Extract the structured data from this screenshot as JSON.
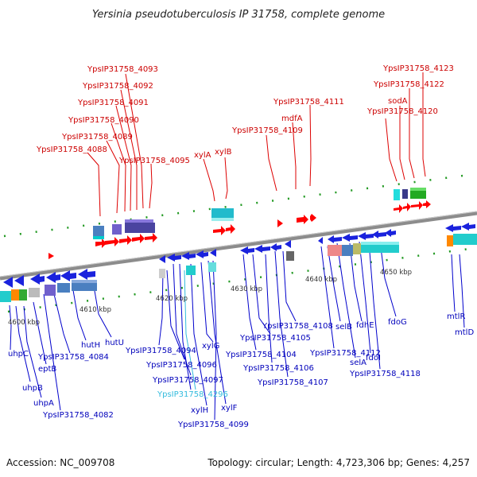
{
  "title": "Yersinia pseudotuberculosis IP 31758, complete genome",
  "footer": {
    "accession": "Accession: NC_009708",
    "summary": "Topology: circular; Length: 4,723,306 bp; Genes: 4,257"
  },
  "colors": {
    "top_label": "#cc0000",
    "bottom_label": "#0000bb",
    "highlight_label": "#33bbdd",
    "backbone": "#808080",
    "tick": "#228822"
  },
  "kbp_ticks": [
    "4600 kbp",
    "4610 kbp",
    "4620 kbp",
    "4630 kbp",
    "4640 kbp",
    "4650 kbp"
  ],
  "top_labels": [
    "YpsIP31758_4093",
    "YpsIP31758_4092",
    "YpsIP31758_4091",
    "YpsIP31758_4090",
    "YpsIP31758_4089",
    "YpsIP31758_4088",
    "YpsIP31758_4095",
    "xylA",
    "xylB",
    "YpsIP31758_4111",
    "mdfA",
    "YpsIP31758_4109",
    "YpsIP31758_4123",
    "YpsIP31758_4122",
    "sodA",
    "YpsIP31758_4120"
  ],
  "bottom_labels": [
    "uhpC",
    "uhpB",
    "uhpA",
    "eptB",
    "YpsIP31758_4082",
    "YpsIP31758_4084",
    "hutH",
    "hutU",
    "YpsIP31758_4094",
    "YpsIP31758_4096",
    "YpsIP31758_4097",
    "YpsIP31758_4296",
    "xylG",
    "xylH",
    "xylF",
    "YpsIP31758_4099",
    "YpsIP31758_4104",
    "YpsIP31758_4105",
    "YpsIP31758_4106",
    "YpsIP31758_4107",
    "YpsIP31758_4108",
    "selB",
    "selA",
    "YpsIP31758_4112",
    "fdhE",
    "fdoI",
    "YpsIP31758_4118",
    "fdoG",
    "mtlR",
    "mtlD"
  ]
}
